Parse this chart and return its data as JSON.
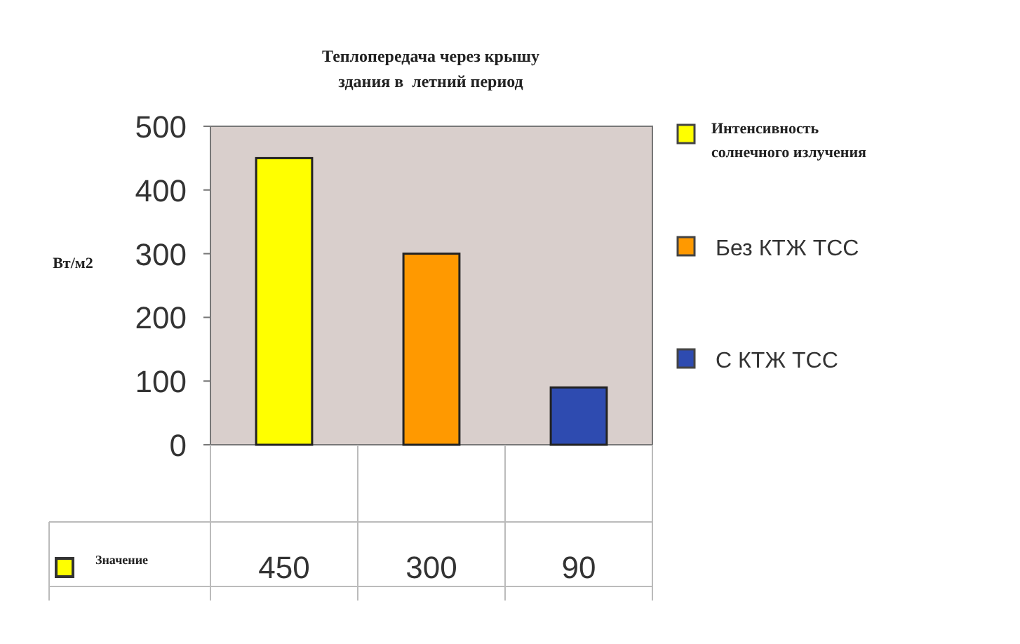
{
  "chart_data": {
    "type": "bar",
    "title": "Теплопередача через крышу\nздания в  летний период",
    "ylabel": "Вт/м2",
    "categories": [
      null,
      null,
      null
    ],
    "series": [
      {
        "name": "Значение",
        "color": "#ffff00",
        "colors": [
          "#ffff00",
          "#ff9900",
          "#2e4bb0"
        ],
        "values": [
          450,
          300,
          90
        ]
      }
    ],
    "annotations": [
      "Интенсивность солнечного излучения",
      "Без КТЖ ТСС",
      "С КТЖ ТСС"
    ],
    "ylim": [
      0,
      500
    ],
    "yticks": [
      0,
      100,
      200,
      300,
      400,
      500
    ],
    "grid": false,
    "legend": "bottom left",
    "data_labels": true
  }
}
